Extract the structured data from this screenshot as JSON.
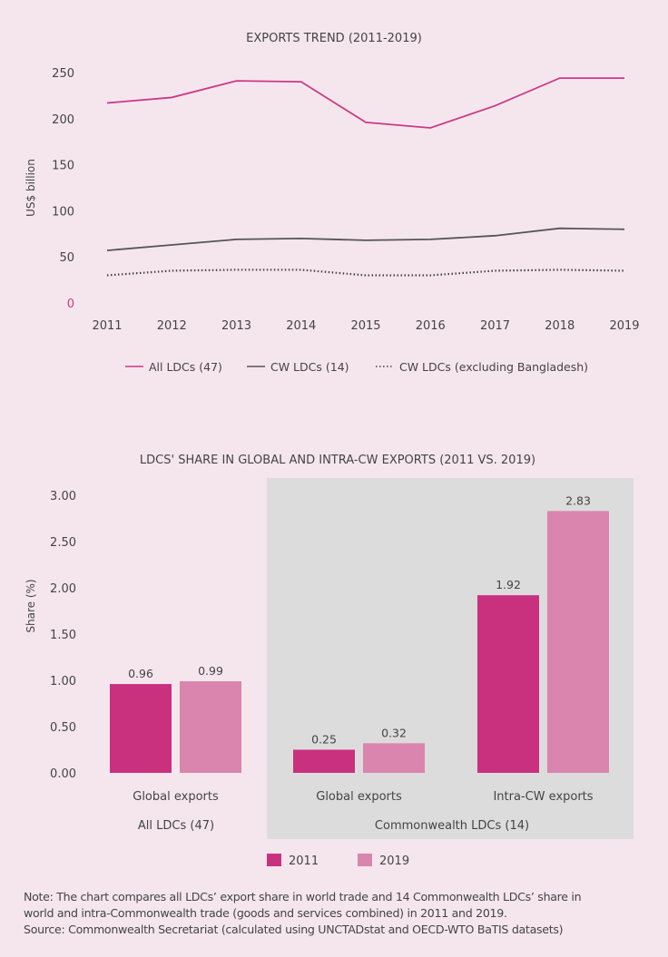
{
  "chart_data": [
    {
      "type": "line",
      "title": "EXPORTS TREND (2011-2019)",
      "xlabel": "",
      "ylabel": "US$ billion",
      "ylim": [
        0,
        250
      ],
      "yticks": [
        "0",
        "50",
        "100",
        "150",
        "200",
        "250"
      ],
      "x": [
        "2011",
        "2012",
        "2013",
        "2014",
        "2015",
        "2016",
        "2017",
        "2018",
        "2019"
      ],
      "grid": false,
      "legend_position": "bottom",
      "series": [
        {
          "name": "All LDCs (47)",
          "color": "#cc3a85",
          "style": "solid",
          "values": [
            217,
            223,
            241,
            240,
            196,
            190,
            214,
            244,
            244
          ]
        },
        {
          "name": "CW LDCs (14)",
          "color": "#555555",
          "style": "solid",
          "values": [
            57,
            63,
            69,
            70,
            68,
            69,
            73,
            81,
            80
          ]
        },
        {
          "name": "CW LDCs (excluding Bangladesh)",
          "color": "#444444",
          "style": "dotted",
          "values": [
            30,
            35,
            36,
            36,
            30,
            30,
            35,
            36,
            35
          ]
        }
      ]
    },
    {
      "type": "bar",
      "title": "LDCS' SHARE IN GLOBAL AND INTRA-CW EXPORTS (2011 VS. 2019)",
      "xlabel": "",
      "ylabel": "Share (%)",
      "ylim": [
        0,
        3
      ],
      "yticks": [
        "0.00",
        "0.50",
        "1.00",
        "1.50",
        "2.00",
        "2.50",
        "3.00"
      ],
      "categories": [
        "Global exports",
        "Global exports",
        "Intra-CW exports"
      ],
      "groups": [
        {
          "label": "All LDCs (47)",
          "categories": [
            0
          ],
          "highlighted": false
        },
        {
          "label": "Commonwealth LDCs (14)",
          "categories": [
            1,
            2
          ],
          "highlighted": true
        }
      ],
      "legend_position": "bottom",
      "series": [
        {
          "name": "2011",
          "color": "#c9317f",
          "values": [
            0.96,
            0.25,
            1.92
          ],
          "labels": [
            "0.96",
            "0.25",
            "1.92"
          ]
        },
        {
          "name": "2019",
          "color": "#da85ad",
          "values": [
            0.99,
            0.32,
            2.83
          ],
          "labels": [
            "0.99",
            "0.32",
            "2.83"
          ]
        }
      ]
    }
  ],
  "footer": {
    "note_line1": "Note: The chart compares all LDCs’ export share in world trade and 14 Commonwealth LDCs’ share in",
    "note_line2": "world and intra-Commonwealth trade (goods and services combined) in 2011 and 2019.",
    "source": "Source: Commonwealth Secretariat (calculated using UNCTADstat and OECD-WTO BaTIS datasets)"
  }
}
